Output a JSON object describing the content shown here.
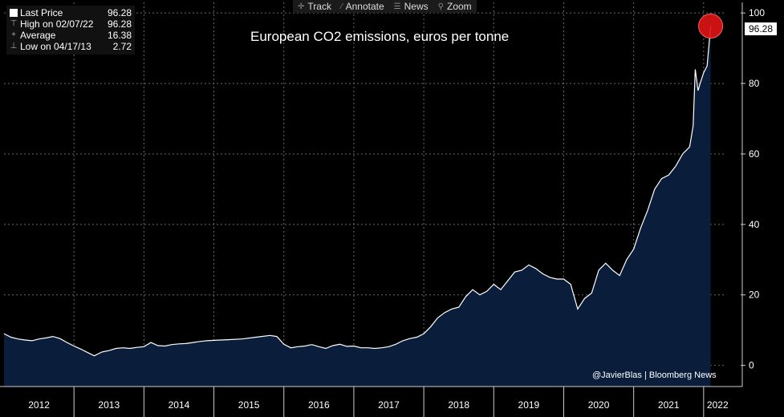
{
  "toolbar": {
    "items": [
      {
        "label": "Track",
        "icon": "crosshair-icon",
        "glyph": "✛"
      },
      {
        "label": "Annotate",
        "icon": "pencil-icon",
        "glyph": "⁄"
      },
      {
        "label": "News",
        "icon": "news-icon",
        "glyph": "☰"
      },
      {
        "label": "Zoom",
        "icon": "magnifier-icon",
        "glyph": "⚲"
      }
    ]
  },
  "legend": {
    "rows": [
      {
        "label": "Last Price",
        "value": "96.28"
      },
      {
        "label": "High on 02/07/22",
        "value": "96.28"
      },
      {
        "label": "Average",
        "value": "16.38"
      },
      {
        "label": "Low on 04/17/13",
        "value": "2.72"
      }
    ]
  },
  "credit": "@JavierBlas | Bloomberg News",
  "colors": {
    "background": "#000000",
    "area": "#0a1e3c",
    "line": "#ffffff",
    "marker": "#e01414",
    "grid": "#6a6a6a"
  },
  "chart_data": {
    "type": "area",
    "title": "European CO2 emissions, euros per tonne",
    "x_ticks": [
      "2012",
      "2013",
      "2014",
      "2015",
      "2016",
      "2017",
      "2018",
      "2019",
      "2020",
      "2021",
      "2022"
    ],
    "y_ticks": [
      0,
      20,
      40,
      60,
      80,
      100
    ],
    "ylim": [
      -6,
      103
    ],
    "xlim": [
      2012.0,
      2022.3
    ],
    "grid": true,
    "last_value": "96.28",
    "series": [
      {
        "points": [
          [
            2012.0,
            9.0
          ],
          [
            2012.1,
            8.0
          ],
          [
            2012.2,
            7.5
          ],
          [
            2012.3,
            7.2
          ],
          [
            2012.4,
            7.0
          ],
          [
            2012.5,
            7.5
          ],
          [
            2012.6,
            7.8
          ],
          [
            2012.7,
            8.2
          ],
          [
            2012.8,
            7.6
          ],
          [
            2012.9,
            6.5
          ],
          [
            2013.0,
            5.5
          ],
          [
            2013.1,
            4.6
          ],
          [
            2013.2,
            3.6
          ],
          [
            2013.29,
            2.72
          ],
          [
            2013.4,
            3.8
          ],
          [
            2013.5,
            4.2
          ],
          [
            2013.6,
            4.8
          ],
          [
            2013.7,
            5.0
          ],
          [
            2013.8,
            4.8
          ],
          [
            2013.9,
            5.1
          ],
          [
            2014.0,
            5.3
          ],
          [
            2014.1,
            6.5
          ],
          [
            2014.2,
            5.6
          ],
          [
            2014.3,
            5.5
          ],
          [
            2014.4,
            5.9
          ],
          [
            2014.5,
            6.1
          ],
          [
            2014.6,
            6.2
          ],
          [
            2014.7,
            6.5
          ],
          [
            2014.8,
            6.8
          ],
          [
            2014.9,
            7.0
          ],
          [
            2015.0,
            7.1
          ],
          [
            2015.2,
            7.3
          ],
          [
            2015.4,
            7.5
          ],
          [
            2015.6,
            8.0
          ],
          [
            2015.8,
            8.5
          ],
          [
            2015.9,
            8.2
          ],
          [
            2016.0,
            6.0
          ],
          [
            2016.1,
            5.0
          ],
          [
            2016.2,
            5.3
          ],
          [
            2016.3,
            5.5
          ],
          [
            2016.4,
            5.9
          ],
          [
            2016.5,
            5.3
          ],
          [
            2016.6,
            4.8
          ],
          [
            2016.7,
            5.6
          ],
          [
            2016.8,
            6.0
          ],
          [
            2016.9,
            5.4
          ],
          [
            2017.0,
            5.5
          ],
          [
            2017.1,
            5.0
          ],
          [
            2017.2,
            5.0
          ],
          [
            2017.3,
            4.8
          ],
          [
            2017.4,
            5.0
          ],
          [
            2017.5,
            5.3
          ],
          [
            2017.6,
            6.0
          ],
          [
            2017.7,
            7.0
          ],
          [
            2017.8,
            7.6
          ],
          [
            2017.9,
            8.0
          ],
          [
            2018.0,
            9.0
          ],
          [
            2018.1,
            11.0
          ],
          [
            2018.2,
            13.5
          ],
          [
            2018.3,
            15.0
          ],
          [
            2018.4,
            16.0
          ],
          [
            2018.5,
            16.5
          ],
          [
            2018.6,
            19.5
          ],
          [
            2018.7,
            21.5
          ],
          [
            2018.8,
            20.0
          ],
          [
            2018.9,
            21.0
          ],
          [
            2019.0,
            23.0
          ],
          [
            2019.1,
            21.5
          ],
          [
            2019.2,
            24.0
          ],
          [
            2019.3,
            26.5
          ],
          [
            2019.4,
            27.0
          ],
          [
            2019.5,
            28.5
          ],
          [
            2019.6,
            27.5
          ],
          [
            2019.7,
            26.0
          ],
          [
            2019.8,
            25.0
          ],
          [
            2019.9,
            24.5
          ],
          [
            2020.0,
            24.5
          ],
          [
            2020.1,
            23.0
          ],
          [
            2020.2,
            16.0
          ],
          [
            2020.3,
            19.0
          ],
          [
            2020.4,
            20.5
          ],
          [
            2020.5,
            27.0
          ],
          [
            2020.6,
            29.0
          ],
          [
            2020.7,
            27.0
          ],
          [
            2020.8,
            25.5
          ],
          [
            2020.9,
            30.0
          ],
          [
            2021.0,
            33.0
          ],
          [
            2021.1,
            39.0
          ],
          [
            2021.2,
            44.0
          ],
          [
            2021.3,
            50.0
          ],
          [
            2021.4,
            53.0
          ],
          [
            2021.5,
            54.0
          ],
          [
            2021.6,
            56.5
          ],
          [
            2021.7,
            60.0
          ],
          [
            2021.8,
            62.0
          ],
          [
            2021.85,
            68.0
          ],
          [
            2021.88,
            84.0
          ],
          [
            2021.92,
            78.0
          ],
          [
            2021.95,
            80.0
          ],
          [
            2022.0,
            83.0
          ],
          [
            2022.05,
            85.0
          ],
          [
            2022.1,
            96.28
          ]
        ]
      }
    ]
  }
}
